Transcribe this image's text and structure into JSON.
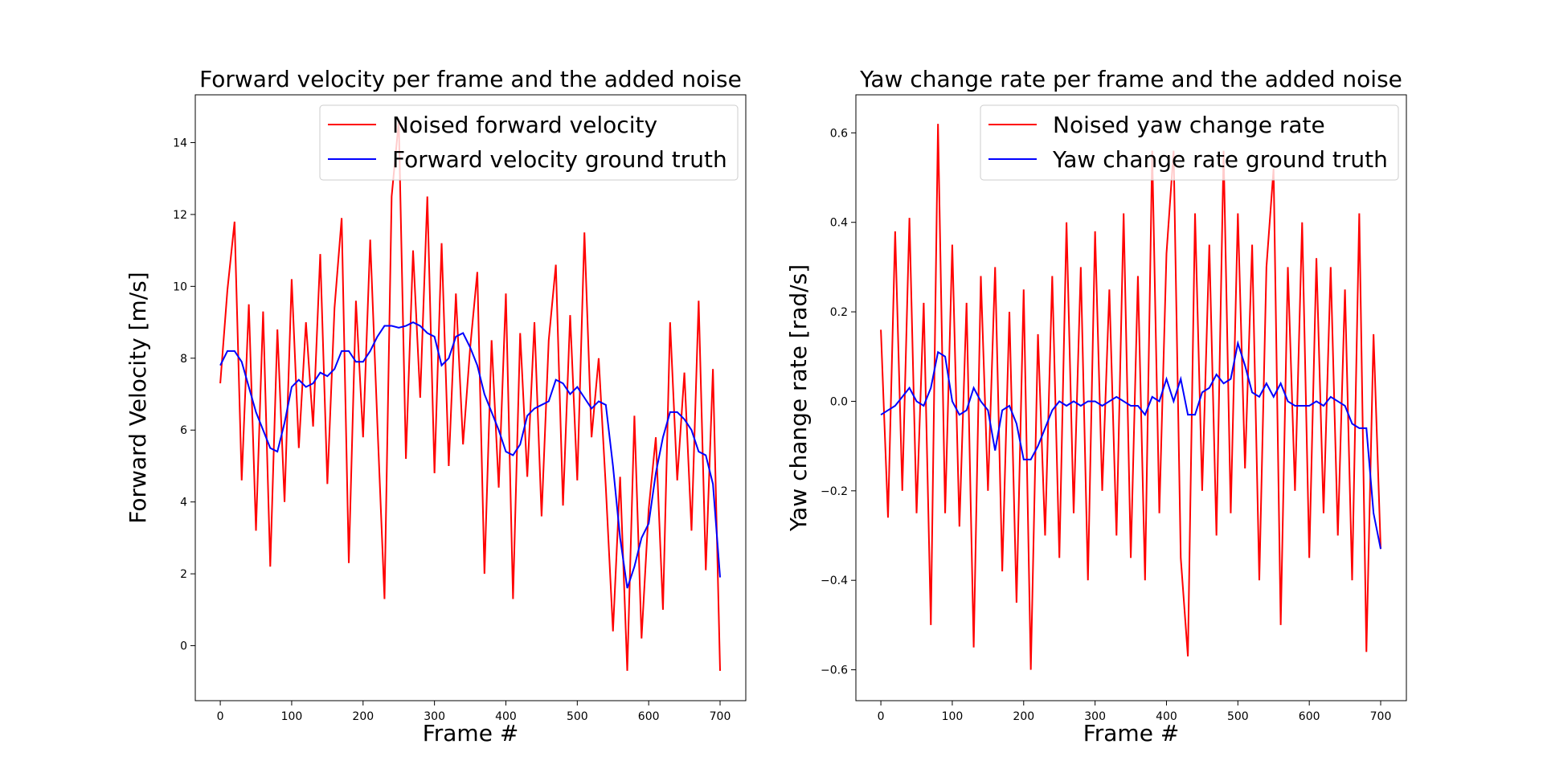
{
  "chart_data": [
    {
      "type": "line",
      "title": "Forward velocity per frame and the added noise",
      "xlabel": "Frame #",
      "ylabel": "Forward Velocity [m/s]",
      "x": [
        0,
        10,
        20,
        30,
        40,
        50,
        60,
        70,
        80,
        90,
        100,
        110,
        120,
        130,
        140,
        150,
        160,
        170,
        180,
        190,
        200,
        210,
        220,
        230,
        240,
        250,
        260,
        270,
        280,
        290,
        300,
        310,
        320,
        330,
        340,
        350,
        360,
        370,
        380,
        390,
        400,
        410,
        420,
        430,
        440,
        450,
        460,
        470,
        480,
        490,
        500,
        510,
        520,
        530,
        540,
        550,
        560,
        570,
        580,
        590,
        600,
        610,
        620,
        630,
        640,
        650,
        660,
        670,
        680,
        690,
        700
      ],
      "series": [
        {
          "name": "Noised forward velocity",
          "color": "#ff0000",
          "values": [
            7.3,
            9.9,
            11.8,
            4.6,
            9.5,
            3.2,
            9.3,
            2.2,
            8.8,
            4.0,
            10.2,
            5.5,
            9.0,
            6.1,
            10.9,
            4.5,
            9.4,
            11.9,
            2.3,
            9.6,
            5.8,
            11.3,
            6.2,
            1.3,
            12.5,
            14.6,
            5.2,
            11.0,
            6.9,
            12.5,
            4.8,
            11.2,
            5.0,
            9.8,
            5.6,
            8.3,
            10.4,
            2.0,
            8.5,
            4.4,
            9.8,
            1.3,
            8.7,
            4.7,
            9.0,
            3.6,
            8.5,
            10.6,
            3.9,
            9.2,
            4.6,
            11.5,
            5.8,
            8.0,
            4.4,
            0.4,
            4.7,
            -0.7,
            6.4,
            0.2,
            3.8,
            5.8,
            1.0,
            9.0,
            4.6,
            7.6,
            3.2,
            9.6,
            2.1,
            7.7,
            -0.7
          ]
        },
        {
          "name": "Forward velocity ground truth",
          "color": "#0000ff",
          "values": [
            7.8,
            8.2,
            8.2,
            7.9,
            7.2,
            6.5,
            6.0,
            5.5,
            5.4,
            6.2,
            7.2,
            7.4,
            7.2,
            7.3,
            7.6,
            7.5,
            7.7,
            8.2,
            8.2,
            7.9,
            7.9,
            8.2,
            8.6,
            8.9,
            8.9,
            8.85,
            8.9,
            9.0,
            8.9,
            8.7,
            8.6,
            7.8,
            8.0,
            8.6,
            8.7,
            8.3,
            7.8,
            7.0,
            6.5,
            6.0,
            5.4,
            5.3,
            5.6,
            6.4,
            6.6,
            6.7,
            6.8,
            7.4,
            7.3,
            7.0,
            7.2,
            6.9,
            6.6,
            6.8,
            6.7,
            5.0,
            3.0,
            1.6,
            2.2,
            3.0,
            3.4,
            4.8,
            5.8,
            6.5,
            6.5,
            6.3,
            6.0,
            5.4,
            5.3,
            4.5,
            1.9
          ]
        }
      ],
      "xlim": [
        -35,
        736
      ],
      "ylim": [
        -1.53,
        15.33
      ],
      "xticks": [
        0,
        100,
        200,
        300,
        400,
        500,
        600,
        700
      ],
      "yticks": [
        0,
        2,
        4,
        6,
        8,
        10,
        12,
        14
      ],
      "legend": "upper right"
    },
    {
      "type": "line",
      "title": "Yaw change rate per frame and the added noise",
      "xlabel": "Frame #",
      "ylabel": "Yaw change rate [rad/s]",
      "x": [
        0,
        10,
        20,
        30,
        40,
        50,
        60,
        70,
        80,
        90,
        100,
        110,
        120,
        130,
        140,
        150,
        160,
        170,
        180,
        190,
        200,
        210,
        220,
        230,
        240,
        250,
        260,
        270,
        280,
        290,
        300,
        310,
        320,
        330,
        340,
        350,
        360,
        370,
        380,
        390,
        400,
        410,
        420,
        430,
        440,
        450,
        460,
        470,
        480,
        490,
        500,
        510,
        520,
        530,
        540,
        550,
        560,
        570,
        580,
        590,
        600,
        610,
        620,
        630,
        640,
        650,
        660,
        670,
        680,
        690,
        700
      ],
      "series": [
        {
          "name": "Noised yaw change rate",
          "color": "#ff0000",
          "values": [
            0.16,
            -0.26,
            0.38,
            -0.2,
            0.41,
            -0.25,
            0.22,
            -0.5,
            0.62,
            -0.25,
            0.35,
            -0.28,
            0.22,
            -0.55,
            0.28,
            -0.2,
            0.3,
            -0.38,
            0.2,
            -0.45,
            0.25,
            -0.6,
            0.15,
            -0.3,
            0.28,
            -0.35,
            0.4,
            -0.25,
            0.3,
            -0.4,
            0.38,
            -0.2,
            0.25,
            -0.3,
            0.42,
            -0.35,
            0.28,
            -0.4,
            0.56,
            -0.25,
            0.33,
            0.56,
            -0.35,
            -0.57,
            0.42,
            -0.2,
            0.35,
            -0.3,
            0.56,
            -0.25,
            0.42,
            -0.15,
            0.35,
            -0.4,
            0.3,
            0.52,
            -0.5,
            0.3,
            -0.2,
            0.4,
            -0.35,
            0.32,
            -0.25,
            0.3,
            -0.3,
            0.25,
            -0.4,
            0.42,
            -0.56,
            0.15,
            -0.33
          ]
        },
        {
          "name": "Yaw change rate ground truth",
          "color": "#0000ff",
          "values": [
            -0.03,
            -0.02,
            -0.01,
            0.01,
            0.03,
            0.0,
            -0.01,
            0.03,
            0.11,
            0.1,
            0.0,
            -0.03,
            -0.02,
            0.03,
            0.0,
            -0.02,
            -0.11,
            -0.02,
            -0.01,
            -0.05,
            -0.13,
            -0.13,
            -0.1,
            -0.06,
            -0.02,
            0.0,
            -0.01,
            0.0,
            -0.01,
            0.0,
            0.0,
            -0.01,
            0.0,
            0.01,
            0.0,
            -0.01,
            -0.01,
            -0.03,
            0.01,
            0.0,
            0.05,
            0.0,
            0.05,
            -0.03,
            -0.03,
            0.02,
            0.03,
            0.06,
            0.04,
            0.05,
            0.13,
            0.08,
            0.02,
            0.01,
            0.04,
            0.01,
            0.04,
            0.0,
            -0.01,
            -0.01,
            -0.01,
            0.0,
            -0.01,
            0.01,
            0.0,
            -0.01,
            -0.05,
            -0.06,
            -0.06,
            -0.25,
            -0.33
          ]
        }
      ],
      "xlim": [
        -35,
        736
      ],
      "ylim": [
        -0.669,
        0.685
      ],
      "xticks": [
        0,
        100,
        200,
        300,
        400,
        500,
        600,
        700
      ],
      "yticks": [
        {
          "value": -0.6,
          "label": "−0.6"
        },
        {
          "value": -0.4,
          "label": "−0.4"
        },
        {
          "value": -0.2,
          "label": "−0.2"
        },
        {
          "value": 0,
          "label": "0.0"
        },
        0.2,
        0.4,
        0.6
      ],
      "legend": "upper right"
    }
  ]
}
